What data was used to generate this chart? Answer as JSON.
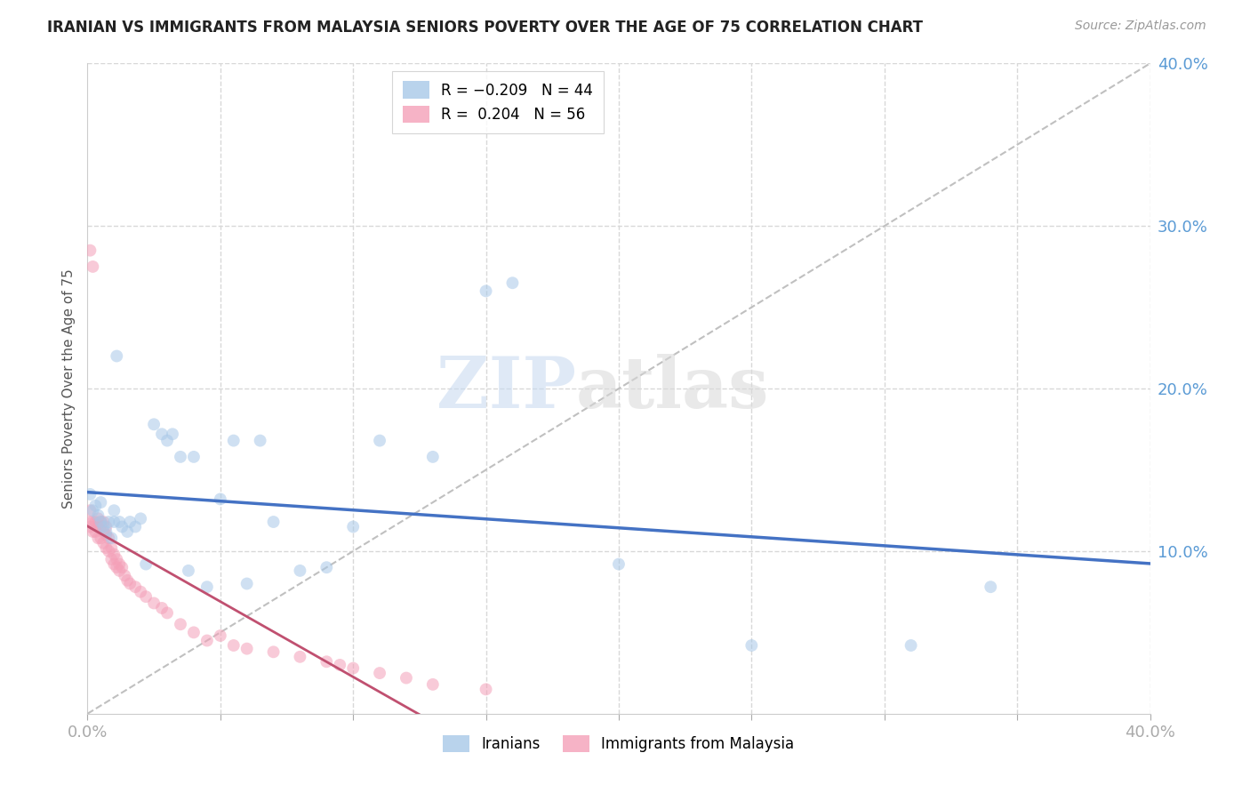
{
  "title": "IRANIAN VS IMMIGRANTS FROM MALAYSIA SENIORS POVERTY OVER THE AGE OF 75 CORRELATION CHART",
  "source": "Source: ZipAtlas.com",
  "ylabel": "Seniors Poverty Over the Age of 75",
  "xlim": [
    0.0,
    0.4
  ],
  "ylim": [
    0.0,
    0.4
  ],
  "watermark": "ZIPatlas",
  "iranian_color": "#a8c8e8",
  "malaysia_color": "#f4a0b8",
  "iranian_line_color": "#4472c4",
  "malaysia_line_color": "#c05070",
  "diag_line_color": "#c0c0c0",
  "background_color": "#ffffff",
  "grid_color": "#d8d8d8",
  "marker_size": 100,
  "marker_alpha": 0.55,
  "iranians_x": [
    0.001,
    0.002,
    0.003,
    0.004,
    0.005,
    0.005,
    0.006,
    0.007,
    0.008,
    0.009,
    0.01,
    0.01,
    0.011,
    0.012,
    0.013,
    0.015,
    0.016,
    0.018,
    0.02,
    0.022,
    0.025,
    0.028,
    0.03,
    0.032,
    0.035,
    0.038,
    0.04,
    0.045,
    0.05,
    0.055,
    0.06,
    0.065,
    0.07,
    0.08,
    0.09,
    0.1,
    0.11,
    0.13,
    0.15,
    0.16,
    0.2,
    0.25,
    0.31,
    0.34
  ],
  "iranians_y": [
    0.135,
    0.125,
    0.128,
    0.122,
    0.118,
    0.13,
    0.115,
    0.112,
    0.118,
    0.108,
    0.125,
    0.118,
    0.22,
    0.118,
    0.115,
    0.112,
    0.118,
    0.115,
    0.12,
    0.092,
    0.178,
    0.172,
    0.168,
    0.172,
    0.158,
    0.088,
    0.158,
    0.078,
    0.132,
    0.168,
    0.08,
    0.168,
    0.118,
    0.088,
    0.09,
    0.115,
    0.168,
    0.158,
    0.26,
    0.265,
    0.092,
    0.042,
    0.042,
    0.078
  ],
  "malaysia_x": [
    0.001,
    0.001,
    0.001,
    0.001,
    0.002,
    0.002,
    0.002,
    0.003,
    0.003,
    0.004,
    0.004,
    0.004,
    0.005,
    0.005,
    0.005,
    0.006,
    0.006,
    0.006,
    0.007,
    0.007,
    0.007,
    0.008,
    0.008,
    0.009,
    0.009,
    0.01,
    0.01,
    0.011,
    0.011,
    0.012,
    0.012,
    0.013,
    0.014,
    0.015,
    0.016,
    0.018,
    0.02,
    0.022,
    0.025,
    0.028,
    0.03,
    0.035,
    0.04,
    0.045,
    0.05,
    0.055,
    0.06,
    0.07,
    0.08,
    0.09,
    0.095,
    0.1,
    0.11,
    0.12,
    0.13,
    0.15
  ],
  "malaysia_y": [
    0.115,
    0.118,
    0.125,
    0.285,
    0.112,
    0.118,
    0.275,
    0.112,
    0.118,
    0.108,
    0.115,
    0.12,
    0.108,
    0.115,
    0.118,
    0.105,
    0.112,
    0.118,
    0.102,
    0.11,
    0.115,
    0.1,
    0.108,
    0.095,
    0.102,
    0.092,
    0.098,
    0.09,
    0.095,
    0.088,
    0.092,
    0.09,
    0.085,
    0.082,
    0.08,
    0.078,
    0.075,
    0.072,
    0.068,
    0.065,
    0.062,
    0.055,
    0.05,
    0.045,
    0.048,
    0.042,
    0.04,
    0.038,
    0.035,
    0.032,
    0.03,
    0.028,
    0.025,
    0.022,
    0.018,
    0.015
  ]
}
